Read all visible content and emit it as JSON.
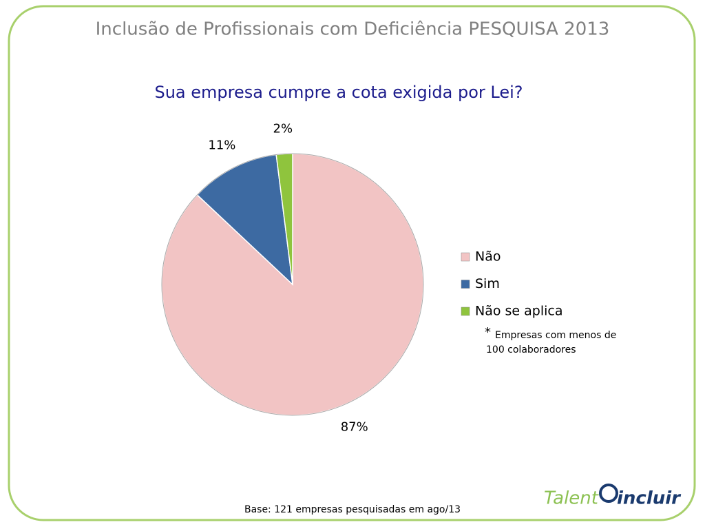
{
  "header": {
    "title": "Inclusão de Profissionais com Deficiência PESQUISA 2013"
  },
  "chart_data": {
    "type": "pie",
    "title": "Sua empresa cumpre a cota exigida por Lei?",
    "categories": [
      "Não",
      "Sim",
      "Não se aplica"
    ],
    "values": [
      87,
      11,
      2
    ],
    "value_labels": [
      "87%",
      "11%",
      "2%"
    ],
    "colors": [
      "#f2c4c4",
      "#3d6aa2",
      "#8fc43d"
    ],
    "legend": "right"
  },
  "note": {
    "mark": "*",
    "lines": [
      "Empresas com menos de",
      "100 colaboradores"
    ]
  },
  "footer": {
    "text": "Base: 121 empresas pesquisadas em ago/13"
  },
  "logo": {
    "parts": [
      "Talent",
      "incluir"
    ]
  }
}
